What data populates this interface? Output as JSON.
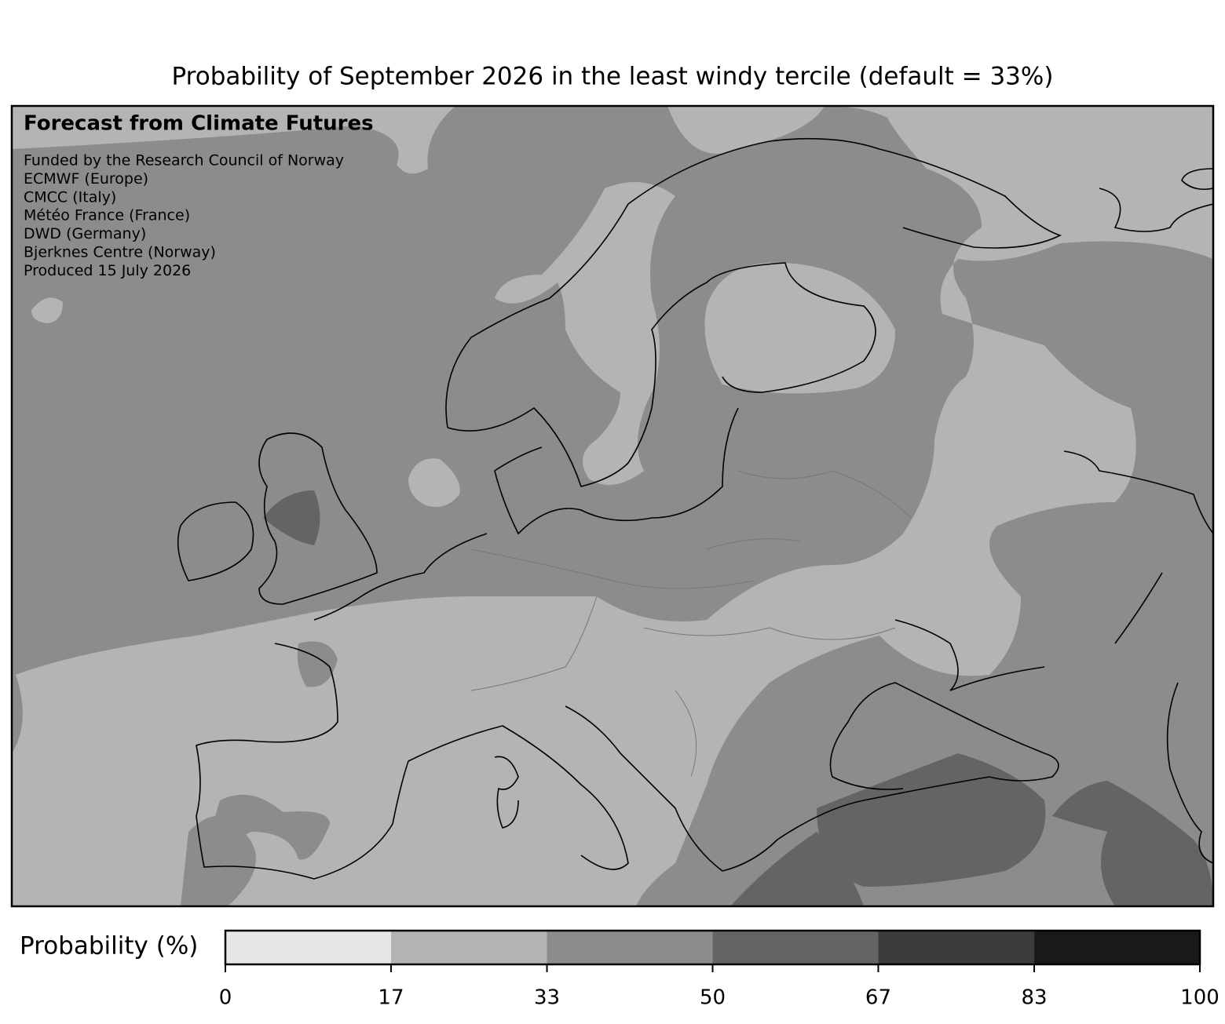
{
  "title": "Probability of September 2026 in the least windy tercile (default = 33%)",
  "annotation": {
    "heading": "Forecast from Climate Futures",
    "lines": [
      "Funded by the Research Council of Norway",
      "ECMWF (Europe)",
      "CMCC (Italy)",
      "Météo France (France)",
      "DWD (Germany)",
      "Bjerknes Centre (Norway)",
      "Produced 15 July 2026"
    ]
  },
  "colorbar": {
    "label": "Probability (%)",
    "lim": [
      0,
      100
    ],
    "ticks": [
      0,
      17,
      33,
      50,
      67,
      83,
      100
    ],
    "colors": [
      "#e6e6e6",
      "#b4b4b4",
      "#8c8c8c",
      "#646464",
      "#3c3c3c",
      "#191919"
    ]
  }
}
